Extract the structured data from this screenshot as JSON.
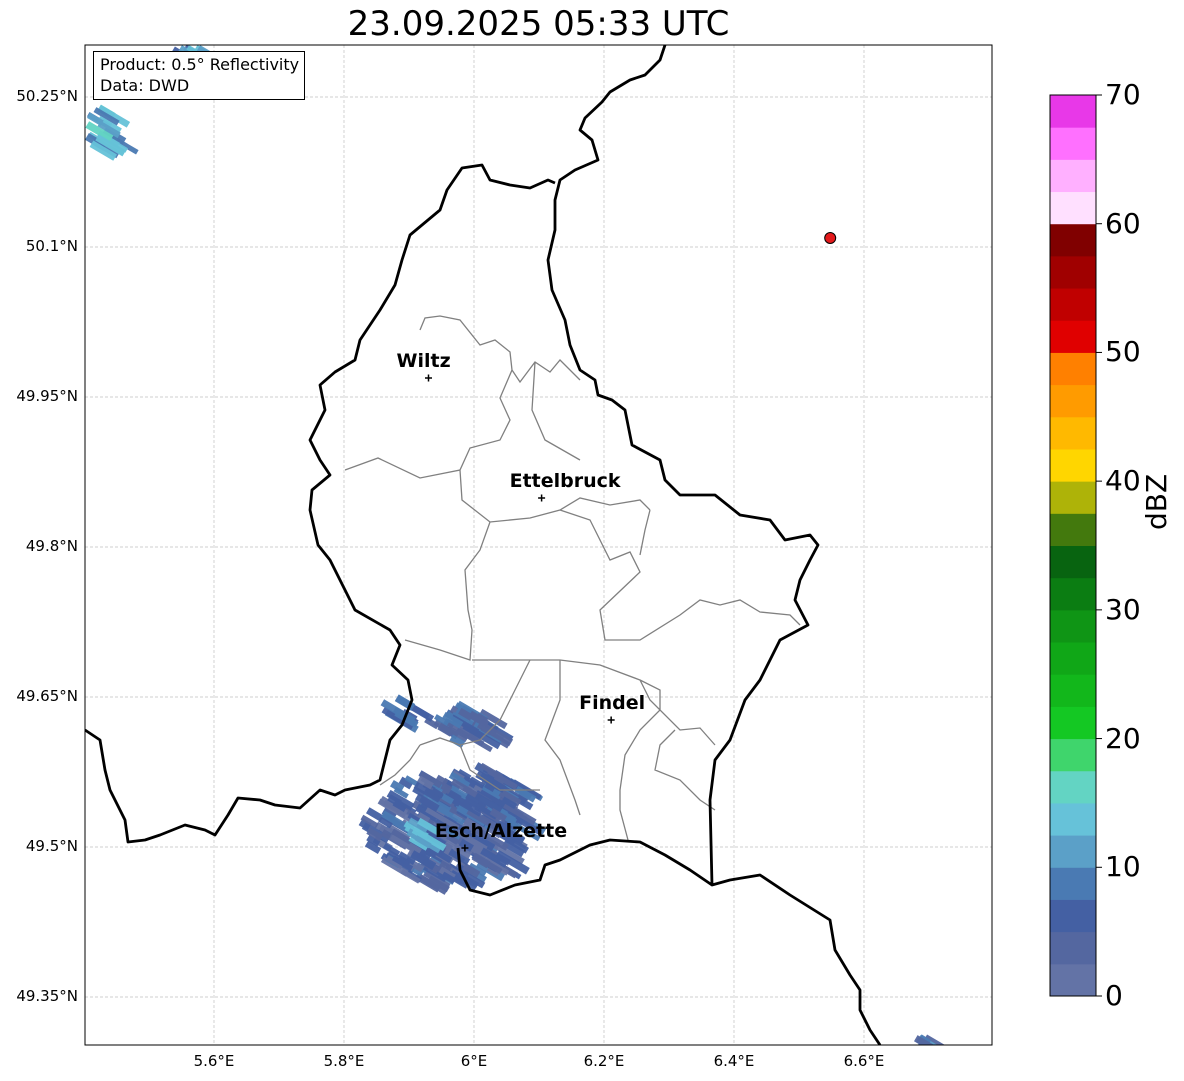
{
  "title": "23.09.2025 05:33 UTC",
  "info": {
    "product": "Product: 0.5° Reflectivity",
    "data": "Data: DWD"
  },
  "lat_ticks": [
    "50.25°N",
    "50.1°N",
    "49.95°N",
    "49.8°N",
    "49.65°N",
    "49.5°N",
    "49.35°N"
  ],
  "lon_ticks": [
    "5.6°E",
    "5.8°E",
    "6°E",
    "6.2°E",
    "6.4°E",
    "6.6°E"
  ],
  "cities": [
    {
      "name": "Wiltz",
      "lon": 5.93,
      "lat": 49.969
    },
    {
      "name": "Ettelbruck",
      "lon": 6.104,
      "lat": 49.849
    },
    {
      "name": "Findel",
      "lon": 6.211,
      "lat": 49.627
    },
    {
      "name": "Esch/Alzette",
      "lon": 5.986,
      "lat": 49.499
    }
  ],
  "marker": {
    "lon": 6.548,
    "lat": 50.109,
    "color": "#e31a1c"
  },
  "colorbar": {
    "label": "dBZ",
    "ticks": [
      "0",
      "10",
      "20",
      "30",
      "40",
      "50",
      "60",
      "70"
    ],
    "colors": [
      "#6373a6",
      "#5467a0",
      "#4460a3",
      "#4a7ab3",
      "#5ba0c8",
      "#66c2d9",
      "#63d4c3",
      "#3fd56c",
      "#14c823",
      "#12b71b",
      "#10a717",
      "#0f9515",
      "#0b7d12",
      "#086410",
      "#43790d",
      "#aeb308",
      "#ffd600",
      "#ffb900",
      "#ff9b00",
      "#ff8000",
      "#e00000",
      "#c00000",
      "#a00000",
      "#800000",
      "#ffe0ff",
      "#ffb0ff",
      "#ff70ff",
      "#e838e8"
    ]
  }
}
